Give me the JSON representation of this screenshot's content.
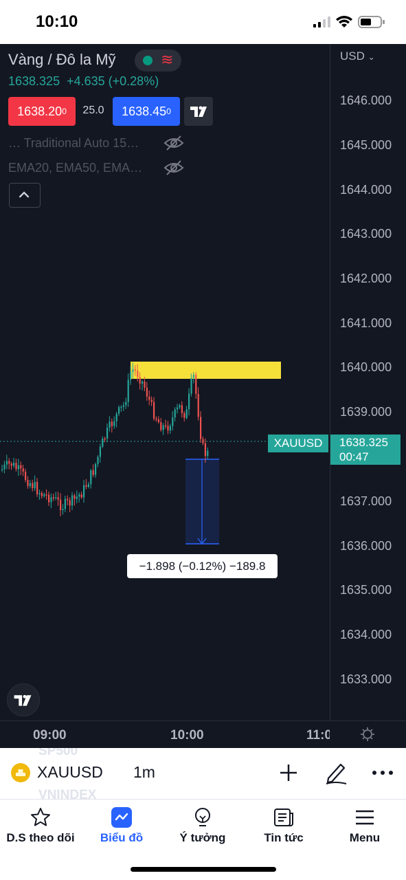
{
  "status_bar": {
    "time": "10:10"
  },
  "header": {
    "title": "Vàng / Đô la Mỹ",
    "last_price": "1638.325",
    "change": "+4.635 (+0.28%)",
    "sell_price": "1638.20",
    "sell_sup": "0",
    "spread": "25.0",
    "buy_price": "1638.45",
    "buy_sup": "0",
    "indicator_1": "… Traditional Auto 15…",
    "indicator_2": "EMA20, EMA50, EMA…"
  },
  "price_axis": {
    "currency": "USD",
    "labels": [
      "1646.000",
      "1645.000",
      "1644.000",
      "1643.000",
      "1642.000",
      "1641.000",
      "1640.000",
      "1639.000",
      "1637.000",
      "1636.000",
      "1635.000",
      "1634.000",
      "1633.000"
    ],
    "last_price_value": "1638.325",
    "countdown": "00:47"
  },
  "time_axis": {
    "labels": [
      "09:00",
      "10:00",
      "11:0"
    ]
  },
  "chart_overlay": {
    "symbol_tag": "XAUUSD",
    "measure_text": "−1.898 (−0.12%) −189.8"
  },
  "colors": {
    "up": "#26a69a",
    "down": "#ef5350",
    "zone": "#f5e03a",
    "measure": "#2962ff"
  },
  "symbol_bar": {
    "ghost_above": "SP500",
    "ghost_below": "VNINDEX",
    "symbol": "XAUUSD",
    "interval": "1m"
  },
  "tabs": [
    {
      "label": "D.S theo dõi",
      "icon": "star-icon"
    },
    {
      "label": "Biểu đồ",
      "icon": "chart-icon",
      "active": true
    },
    {
      "label": "Ý tưởng",
      "icon": "lightbulb-icon"
    },
    {
      "label": "Tin tức",
      "icon": "news-icon"
    },
    {
      "label": "Menu",
      "icon": "menu-icon"
    }
  ]
}
